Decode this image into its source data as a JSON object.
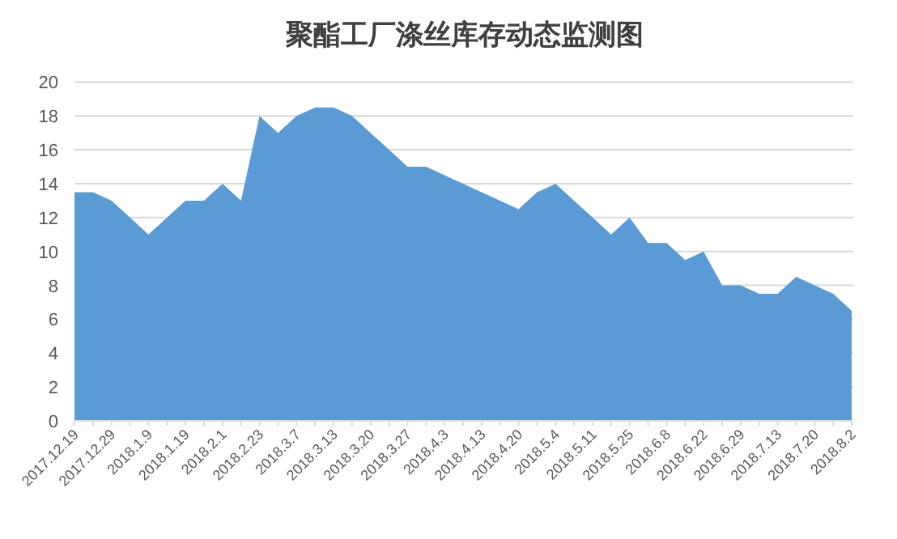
{
  "chart_data": {
    "type": "area",
    "title": "聚酯工厂涤丝库存动态监测图",
    "categories": [
      "2017.12.19",
      null,
      "2017.12.29",
      null,
      "2018.1.9",
      null,
      "2018.1.19",
      null,
      "2018.2.1",
      null,
      "2018.2.23",
      null,
      "2018.3.7",
      null,
      "2018.3.13",
      null,
      "2018.3.20",
      null,
      "2018.3.27",
      null,
      "2018.4.3",
      null,
      "2018.4.13",
      null,
      "2018.4.20",
      null,
      "2018.5.4",
      null,
      "2018.5.11",
      null,
      "2018.5.25",
      null,
      "2018.6.8",
      null,
      "2018.6.22",
      null,
      "2018.6.29",
      null,
      "2018.7.13",
      null,
      "2018.7.20",
      null,
      "2018.8.2"
    ],
    "values": [
      13.5,
      13.5,
      13,
      12,
      11,
      12,
      13,
      13,
      14,
      13,
      18,
      17,
      18,
      18.5,
      18.5,
      18,
      17,
      16,
      15,
      15,
      14.5,
      14,
      13.5,
      13,
      12.5,
      13.5,
      14,
      13,
      12,
      11,
      12,
      10.5,
      10.5,
      9.5,
      10,
      8,
      8,
      7.5,
      7.5,
      8.5,
      8,
      7.5,
      6.5
    ],
    "color": "#5b9bd5",
    "ylim": [
      0,
      20
    ],
    "yticks": [
      0,
      2,
      4,
      6,
      8,
      10,
      12,
      14,
      16,
      18,
      20
    ],
    "grid": "y"
  }
}
